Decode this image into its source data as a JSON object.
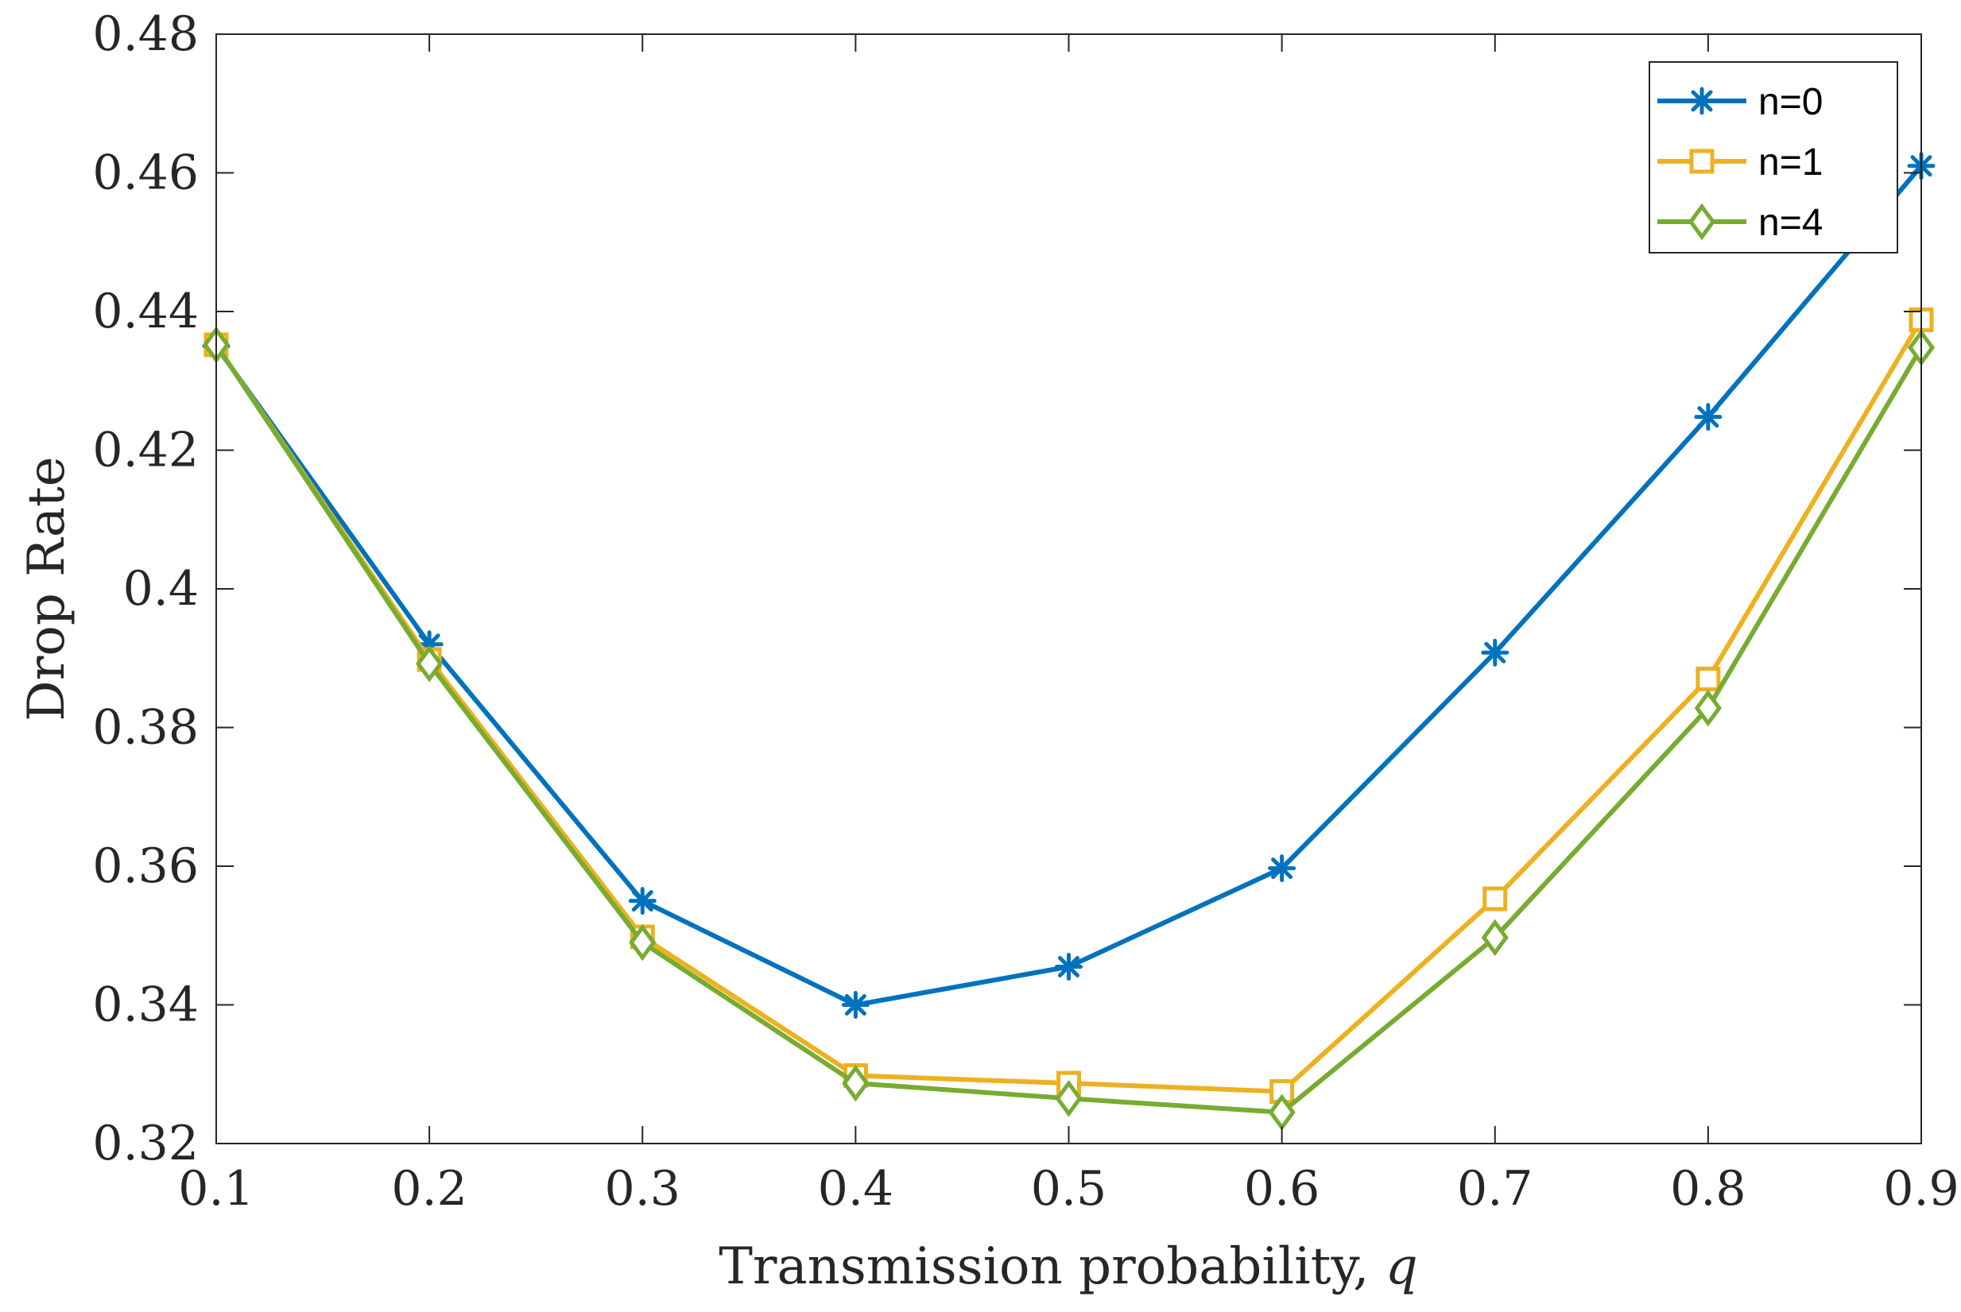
{
  "chart_data": {
    "type": "line",
    "title": "",
    "xlabel": "Transmission probability, ",
    "xlabel_var": "q",
    "ylabel": "Drop Rate",
    "x": [
      0.1,
      0.2,
      0.3,
      0.4,
      0.5,
      0.6,
      0.7,
      0.8,
      0.9
    ],
    "xlim": [
      0.1,
      0.9
    ],
    "ylim": [
      0.32,
      0.48
    ],
    "xticks": [
      "0.1",
      "0.2",
      "0.3",
      "0.4",
      "0.5",
      "0.6",
      "0.7",
      "0.8",
      "0.9"
    ],
    "yticks": [
      "0.32",
      "0.34",
      "0.36",
      "0.38",
      "0.4",
      "0.42",
      "0.44",
      "0.46",
      "0.48"
    ],
    "xtick_values": [
      0.1,
      0.2,
      0.3,
      0.4,
      0.5,
      0.6,
      0.7,
      0.8,
      0.9
    ],
    "ytick_values": [
      0.32,
      0.34,
      0.36,
      0.38,
      0.4,
      0.42,
      0.44,
      0.46,
      0.48
    ],
    "grid": false,
    "legend_position": "top-right",
    "series": [
      {
        "name": "n=0",
        "color": "#0072BD",
        "marker": "asterisk",
        "values": [
          0.435,
          0.392,
          0.355,
          0.34,
          0.3455,
          0.3597,
          0.3908,
          0.4248,
          0.461
        ]
      },
      {
        "name": "n=1",
        "color": "#EDB120",
        "marker": "square",
        "values": [
          0.4352,
          0.3898,
          0.3498,
          0.3298,
          0.3287,
          0.3275,
          0.3553,
          0.387,
          0.4388
        ]
      },
      {
        "name": "n=4",
        "color": "#77AC30",
        "marker": "diamond",
        "values": [
          0.4352,
          0.3892,
          0.349,
          0.3287,
          0.3265,
          0.3245,
          0.3497,
          0.3828,
          0.4348
        ]
      }
    ]
  }
}
